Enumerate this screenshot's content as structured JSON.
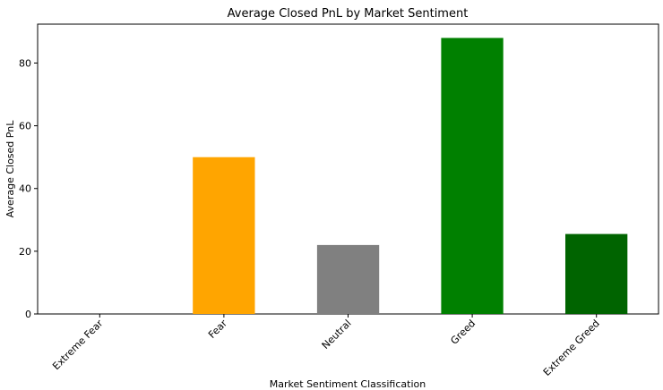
{
  "chart_data": {
    "type": "bar",
    "title": "Average Closed PnL by Market Sentiment",
    "xlabel": "Market Sentiment Classification",
    "ylabel": "Average Closed PnL",
    "categories": [
      "Extreme Fear",
      "Fear",
      "Neutral",
      "Greed",
      "Extreme Greed"
    ],
    "values": [
      0,
      50,
      22,
      88,
      25.5
    ],
    "colors": [
      "#ff0000",
      "#ffa500",
      "#808080",
      "#008000",
      "#006400"
    ],
    "ylim": [
      0,
      92.4
    ],
    "yticks": [
      0,
      20,
      40,
      60,
      80
    ],
    "grid": false,
    "legend": "none"
  }
}
